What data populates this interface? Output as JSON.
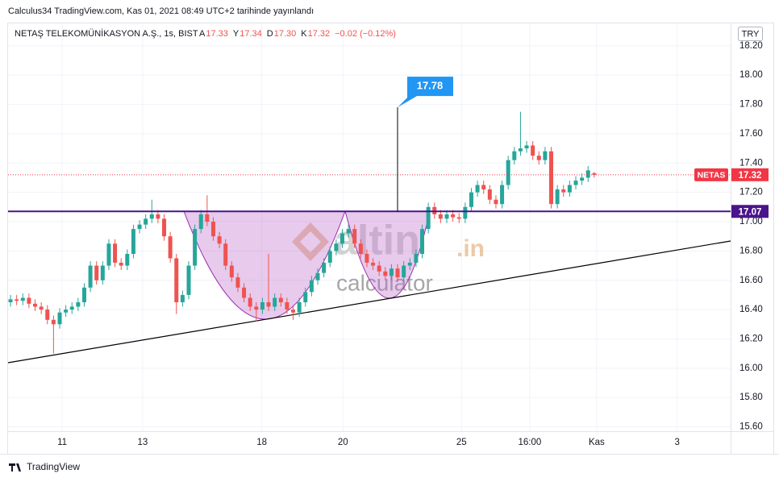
{
  "header": {
    "title": "Calculus34 TradingView.com, Kas 01, 2021 08:49 UTC+2 tarihinde yayınlandı"
  },
  "chart_data": {
    "type": "candlestick",
    "symbol_line": "NETAŞ TELEKOMÜNİKASYON A.Ş., 1s, BIST",
    "legend": [
      {
        "key": "A",
        "value": 17.33
      },
      {
        "key": "Y",
        "value": 17.34
      },
      {
        "key": "D",
        "value": 17.3,
        "label": "17.30"
      },
      {
        "key": "K",
        "value": 17.32
      }
    ],
    "change": "−0.02 (−0.12%)",
    "currency": "TRY",
    "open": [
      16.45,
      16.47,
      16.46,
      16.48,
      16.44,
      16.42,
      16.4,
      16.33,
      16.3,
      16.38,
      16.4,
      16.42,
      16.45,
      16.55,
      16.7,
      16.6,
      16.7,
      16.85,
      16.72,
      16.7,
      16.78,
      16.95,
      16.98,
      17.02,
      17.05,
      17.02,
      16.9,
      16.75,
      16.45,
      16.5,
      16.7,
      16.95,
      17.05,
      17.0,
      16.9,
      16.85,
      16.7,
      16.62,
      16.55,
      16.48,
      16.42,
      16.4,
      16.45,
      16.42,
      16.48,
      16.45,
      16.4,
      16.38,
      16.45,
      16.52,
      16.6,
      16.65,
      16.72,
      16.8,
      16.85,
      16.92,
      16.95,
      16.85,
      16.78,
      16.72,
      16.7,
      16.66,
      16.63,
      16.68,
      16.62,
      16.7,
      16.72,
      16.78,
      16.95,
      17.1,
      17.05,
      17.02,
      17.05,
      17.03,
      17.02,
      17.1,
      17.2,
      17.25,
      17.22,
      17.15,
      17.12,
      17.25,
      17.42,
      17.48,
      17.5,
      17.52,
      17.45,
      17.42,
      17.48,
      17.12,
      17.22,
      17.2,
      17.25,
      17.28,
      17.3,
      17.33
    ],
    "high": [
      16.5,
      16.5,
      16.51,
      16.51,
      16.47,
      16.45,
      16.43,
      16.36,
      16.41,
      16.43,
      16.45,
      16.48,
      16.58,
      16.73,
      16.73,
      16.73,
      16.88,
      16.88,
      16.75,
      16.81,
      16.98,
      17.01,
      17.05,
      17.15,
      17.08,
      17.05,
      16.93,
      16.78,
      16.53,
      16.73,
      16.98,
      17.08,
      17.18,
      17.03,
      16.93,
      16.88,
      16.73,
      16.65,
      16.58,
      16.51,
      16.45,
      16.48,
      16.78,
      16.51,
      16.51,
      16.48,
      16.43,
      16.48,
      16.55,
      16.63,
      16.68,
      16.75,
      16.83,
      16.88,
      16.95,
      16.98,
      16.98,
      16.88,
      16.81,
      16.75,
      16.73,
      16.69,
      16.71,
      16.71,
      16.73,
      16.75,
      16.81,
      16.98,
      17.13,
      17.13,
      17.08,
      17.08,
      17.08,
      17.06,
      17.13,
      17.23,
      17.28,
      17.28,
      17.25,
      17.18,
      17.28,
      17.45,
      17.51,
      17.75,
      17.55,
      17.55,
      17.48,
      17.51,
      17.51,
      17.25,
      17.25,
      17.28,
      17.31,
      17.33,
      17.38,
      17.34
    ],
    "low": [
      16.42,
      16.43,
      16.43,
      16.41,
      16.39,
      16.37,
      16.3,
      16.1,
      16.27,
      16.35,
      16.37,
      16.39,
      16.42,
      16.52,
      16.57,
      16.57,
      16.67,
      16.69,
      16.67,
      16.67,
      16.75,
      16.92,
      16.95,
      16.99,
      16.99,
      16.87,
      16.72,
      16.37,
      16.42,
      16.47,
      16.67,
      16.92,
      16.97,
      16.87,
      16.82,
      16.67,
      16.59,
      16.52,
      16.45,
      16.39,
      16.32,
      16.37,
      16.39,
      16.39,
      16.42,
      16.37,
      16.33,
      16.35,
      16.42,
      16.49,
      16.57,
      16.62,
      16.69,
      16.77,
      16.82,
      16.89,
      16.82,
      16.75,
      16.69,
      16.67,
      16.63,
      16.6,
      16.6,
      16.59,
      16.59,
      16.67,
      16.69,
      16.75,
      16.92,
      17.02,
      16.99,
      16.99,
      17.0,
      16.99,
      16.99,
      17.07,
      17.17,
      17.19,
      17.12,
      17.09,
      17.09,
      17.22,
      17.39,
      17.45,
      17.47,
      17.42,
      17.39,
      17.39,
      17.09,
      17.09,
      17.17,
      17.17,
      17.22,
      17.25,
      17.27,
      17.3
    ],
    "close": [
      16.47,
      16.46,
      16.48,
      16.44,
      16.42,
      16.4,
      16.33,
      16.3,
      16.38,
      16.4,
      16.42,
      16.45,
      16.55,
      16.7,
      16.6,
      16.7,
      16.85,
      16.72,
      16.7,
      16.78,
      16.95,
      16.98,
      17.02,
      17.05,
      17.02,
      16.9,
      16.75,
      16.45,
      16.5,
      16.7,
      16.95,
      17.05,
      17.0,
      16.9,
      16.85,
      16.7,
      16.62,
      16.55,
      16.48,
      16.42,
      16.4,
      16.45,
      16.42,
      16.48,
      16.45,
      16.4,
      16.38,
      16.45,
      16.52,
      16.6,
      16.65,
      16.72,
      16.8,
      16.85,
      16.92,
      16.95,
      16.85,
      16.78,
      16.72,
      16.7,
      16.66,
      16.63,
      16.68,
      16.62,
      16.7,
      16.72,
      16.78,
      16.95,
      17.1,
      17.05,
      17.02,
      17.05,
      17.03,
      17.02,
      17.1,
      17.2,
      17.25,
      17.22,
      17.15,
      17.12,
      17.25,
      17.42,
      17.48,
      17.5,
      17.52,
      17.45,
      17.42,
      17.48,
      17.12,
      17.22,
      17.2,
      17.25,
      17.28,
      17.3,
      17.35,
      17.32
    ],
    "up_color": "#26a69a",
    "down_color": "#ef5350",
    "xlim": [
      -0.4,
      117.2
    ],
    "xticks": [
      {
        "value": 8.4,
        "label": "11"
      },
      {
        "value": 21.5,
        "label": "13"
      },
      {
        "value": 40.9,
        "label": "18"
      },
      {
        "value": 54.1,
        "label": "20"
      },
      {
        "value": 73.4,
        "label": "25"
      },
      {
        "value": 84.5,
        "label": "16:00"
      },
      {
        "value": 95.4,
        "label": "Kas"
      },
      {
        "value": 108.5,
        "label": "3"
      }
    ],
    "ylim": [
      15.57,
      18.32
    ],
    "yticks": [
      {
        "value": 15.6,
        "label": "15.60"
      },
      {
        "value": 15.8,
        "label": "15.80"
      },
      {
        "value": 16,
        "label": "16.00"
      },
      {
        "value": 16.2,
        "label": "16.20"
      },
      {
        "value": 16.4,
        "label": "16.40"
      },
      {
        "value": 16.6,
        "label": "16.60"
      },
      {
        "value": 16.8,
        "label": "16.80"
      },
      {
        "value": 17,
        "label": "17.00"
      },
      {
        "value": 17.2,
        "label": "17.20"
      },
      {
        "value": 17.4,
        "label": "17.40"
      },
      {
        "value": 17.6,
        "label": "17.60"
      },
      {
        "value": 17.8,
        "label": "17.80"
      },
      {
        "value": 18,
        "label": "18.00"
      },
      {
        "value": 18.2,
        "label": "18.20"
      }
    ],
    "grid": true,
    "symbol_tag": "NETAS",
    "last_price": 17.32,
    "last_price_color": "#f23645",
    "level": 17.07,
    "level_color": "#4a148c",
    "callout": 17.78,
    "callout_color": "#2196f3"
  },
  "watermark": {
    "brand": "altin",
    "suffix": ".in",
    "sub": "calculator"
  },
  "footer": {
    "logo": "TradingView"
  }
}
